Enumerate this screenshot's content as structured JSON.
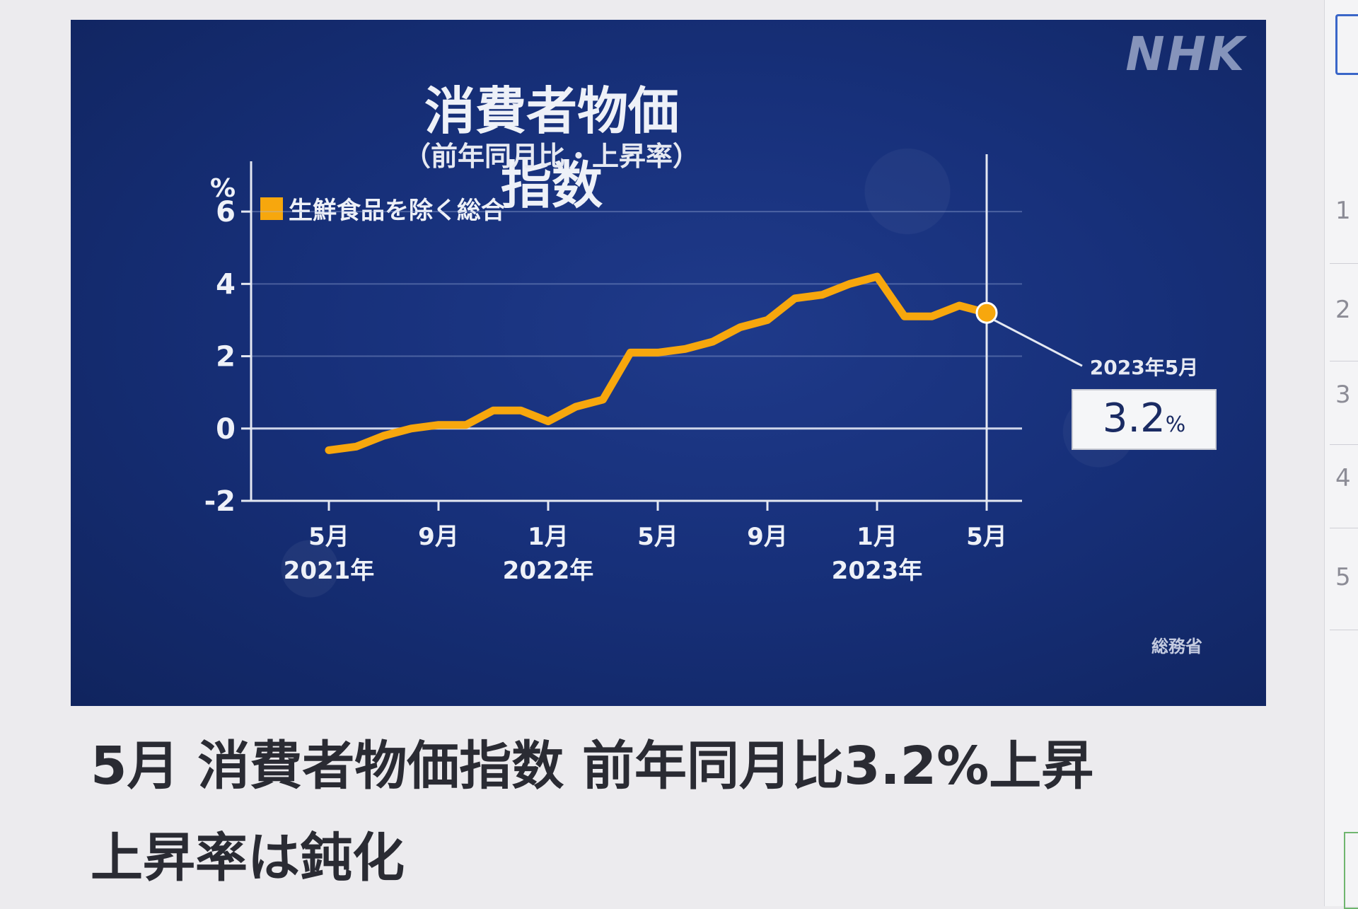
{
  "brand": "NHK",
  "chart_data": {
    "type": "line",
    "title": "消費者物価指数",
    "subtitle": "（前年同月比・上昇率）",
    "ylabel": "%",
    "ylim": [
      -2,
      7
    ],
    "yticks": [
      -2,
      0,
      2,
      4,
      6
    ],
    "ytick_labels": [
      "-2",
      "0",
      "2",
      "4",
      "6"
    ],
    "xticks": [
      {
        "month": "5月",
        "year": "2021年"
      },
      {
        "month": "9月",
        "year": ""
      },
      {
        "month": "1月",
        "year": "2022年"
      },
      {
        "month": "5月",
        "year": ""
      },
      {
        "month": "9月",
        "year": ""
      },
      {
        "month": "1月",
        "year": "2023年"
      },
      {
        "month": "5月",
        "year": ""
      }
    ],
    "x": [
      "2021-05",
      "2021-06",
      "2021-07",
      "2021-08",
      "2021-09",
      "2021-10",
      "2021-11",
      "2021-12",
      "2022-01",
      "2022-02",
      "2022-03",
      "2022-04",
      "2022-05",
      "2022-06",
      "2022-07",
      "2022-08",
      "2022-09",
      "2022-10",
      "2022-11",
      "2022-12",
      "2023-01",
      "2023-02",
      "2023-03",
      "2023-04",
      "2023-05"
    ],
    "series": [
      {
        "name": "生鮮食品を除く総合",
        "color": "#f7a70d",
        "values": [
          -0.6,
          -0.5,
          -0.2,
          0.0,
          0.1,
          0.1,
          0.5,
          0.5,
          0.2,
          0.6,
          0.8,
          2.1,
          2.1,
          2.2,
          2.4,
          2.8,
          3.0,
          3.6,
          3.7,
          4.0,
          4.2,
          3.1,
          3.1,
          3.4,
          3.2
        ]
      }
    ],
    "grid": true,
    "legend": "top-left",
    "highlight": {
      "label": "2023年5月",
      "value": "3.2",
      "unit": "%"
    },
    "source": "総務省"
  },
  "headline": {
    "line1": "5月 消費者物価指数 前年同月比3.2%上昇",
    "line2": "上昇率は鈍化"
  },
  "edge_numbers": [
    "1",
    "2",
    "3",
    "4",
    "5"
  ]
}
